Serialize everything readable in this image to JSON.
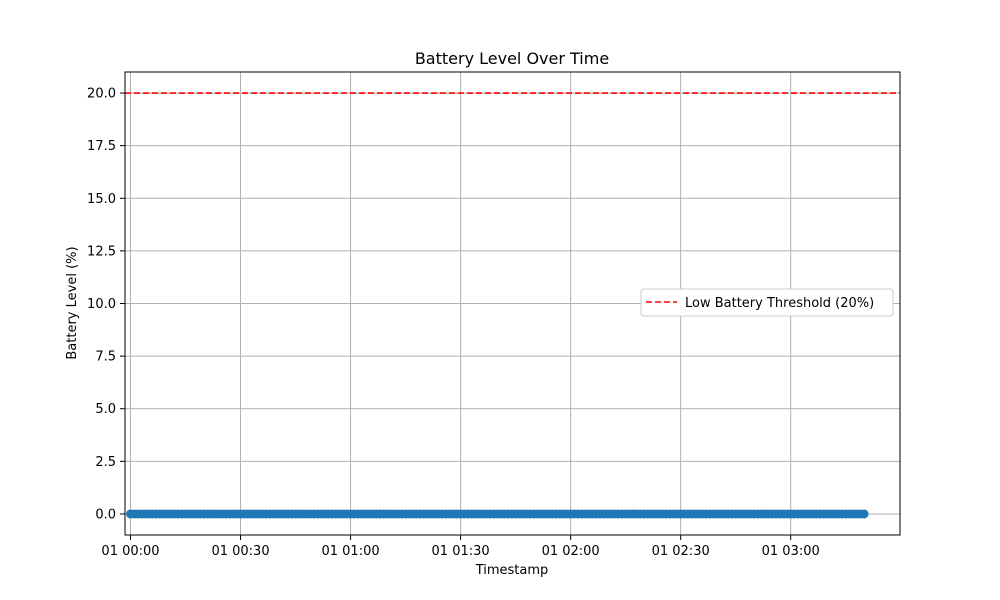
{
  "chart_data": {
    "type": "scatter",
    "title": "Battery Level Over Time",
    "xlabel": "Timestamp",
    "ylabel": "Battery Level (%)",
    "x_range": [
      "01 00:00",
      "03:20"
    ],
    "x_ticks": [
      "01 00:00",
      "01 00:30",
      "01 01:00",
      "01 01:30",
      "01 02:00",
      "01 02:30",
      "01 03:00"
    ],
    "ylim": [
      -1,
      21
    ],
    "y_ticks": [
      "0.0",
      "2.5",
      "5.0",
      "7.5",
      "10.0",
      "12.5",
      "15.0",
      "17.5",
      "20.0"
    ],
    "grid": true,
    "series": [
      {
        "values": "constant 0",
        "color": "#1f77b4",
        "marker": "circle",
        "x_start": "01 00:00",
        "x_end": "01 03:20",
        "interval": "1 minute",
        "y": 0
      }
    ],
    "reference_lines": [
      {
        "name": "Low Battery Threshold (20%)",
        "y": 20,
        "color": "#ff0000",
        "style": "dashed"
      }
    ],
    "legend": {
      "position": "center-right",
      "entries": [
        "Low Battery Threshold (20%)"
      ]
    }
  }
}
